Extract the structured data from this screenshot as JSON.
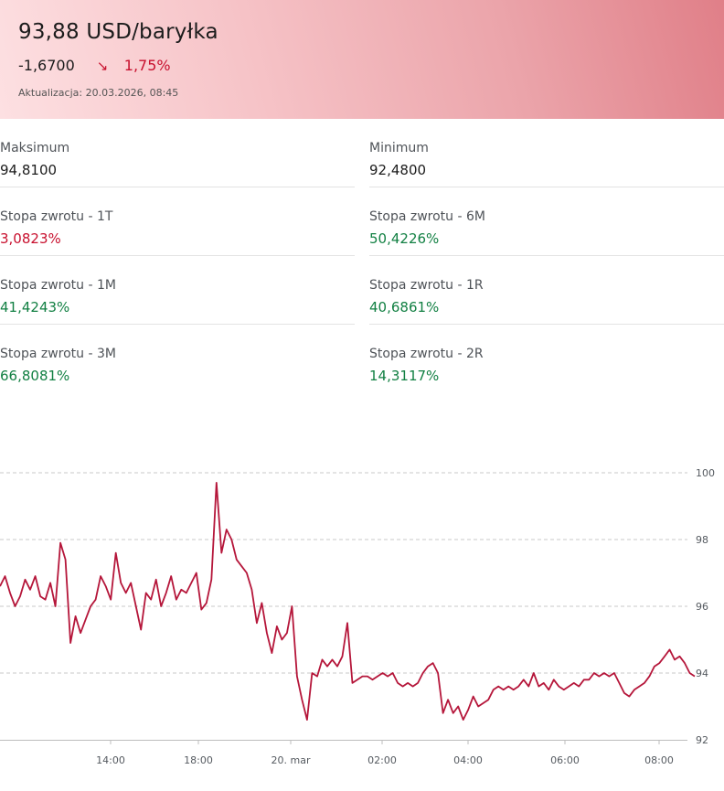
{
  "quote": {
    "price": "93,88 USD/baryłka",
    "change_abs": "-1,6700",
    "change_direction_icon": "arrow-down-right-icon",
    "change_arrow": "↘",
    "change_pct": "1,75%",
    "updated": "Aktualizacja: 20.03.2026, 08:45"
  },
  "colors": {
    "negative": "#c8102e",
    "positive": "#128043",
    "line": "#b5163a",
    "grid": "#c8c8c8"
  },
  "stats": {
    "left": [
      {
        "label": "Maksimum",
        "value": "94,8100",
        "tone": "neutral"
      },
      {
        "label": "Stopa zwrotu - 1T",
        "value": "3,0823%",
        "tone": "neg"
      },
      {
        "label": "Stopa zwrotu - 1M",
        "value": "41,4243%",
        "tone": "pos"
      },
      {
        "label": "Stopa zwrotu - 3M",
        "value": "66,8081%",
        "tone": "pos"
      }
    ],
    "right": [
      {
        "label": "Minimum",
        "value": "92,4800",
        "tone": "neutral"
      },
      {
        "label": "Stopa zwrotu - 6M",
        "value": "50,4226%",
        "tone": "pos"
      },
      {
        "label": "Stopa zwrotu - 1R",
        "value": "40,6861%",
        "tone": "pos"
      },
      {
        "label": "Stopa zwrotu - 2R",
        "value": "14,3117%",
        "tone": "pos"
      }
    ]
  },
  "chart_data": {
    "type": "line",
    "title": "",
    "xlabel": "",
    "ylabel": "",
    "ylim": [
      92,
      100
    ],
    "y_ticks": [
      "92",
      "94",
      "96",
      "98",
      "100"
    ],
    "x_ticks": [
      "14:00",
      "18:00",
      "20. mar",
      "02:00",
      "04:00",
      "06:00",
      "08:00"
    ],
    "grid": true,
    "legend": "none",
    "series": [
      {
        "values": [
          96.6,
          96.9,
          96.4,
          96.0,
          96.3,
          96.8,
          96.5,
          96.9,
          96.3,
          96.2,
          96.7,
          96.0,
          97.9,
          97.4,
          94.9,
          95.7,
          95.2,
          95.6,
          96.0,
          96.2,
          96.9,
          96.6,
          96.2,
          97.6,
          96.7,
          96.4,
          96.7,
          96.0,
          95.3,
          96.4,
          96.2,
          96.8,
          96.0,
          96.4,
          96.9,
          96.2,
          96.5,
          96.4,
          96.7,
          97.0,
          95.9,
          96.1,
          96.8,
          99.7,
          97.6,
          98.3,
          98.0,
          97.4,
          97.2,
          97.0,
          96.5,
          95.5,
          96.1,
          95.2,
          94.6,
          95.4,
          95.0,
          95.2,
          96.0,
          93.9,
          93.2,
          92.6,
          94.0,
          93.9,
          94.4,
          94.2,
          94.4,
          94.2,
          94.5,
          95.5,
          93.7,
          93.8,
          93.9,
          93.9,
          93.8,
          93.9,
          94.0,
          93.9,
          94.0,
          93.7,
          93.6,
          93.7,
          93.6,
          93.7,
          94.0,
          94.2,
          94.3,
          94.0,
          92.8,
          93.2,
          92.8,
          93.0,
          92.6,
          92.9,
          93.3,
          93.0,
          93.1,
          93.2,
          93.5,
          93.6,
          93.5,
          93.6,
          93.5,
          93.6,
          93.8,
          93.6,
          94.0,
          93.6,
          93.7,
          93.5,
          93.8,
          93.6,
          93.5,
          93.6,
          93.7,
          93.6,
          93.8,
          93.8,
          94.0,
          93.9,
          94.0,
          93.9,
          94.0,
          93.7,
          93.4,
          93.3,
          93.5,
          93.6,
          93.7,
          93.9,
          94.2,
          94.3,
          94.5,
          94.7,
          94.4,
          94.5,
          94.3,
          94.0,
          93.9
        ]
      }
    ]
  }
}
